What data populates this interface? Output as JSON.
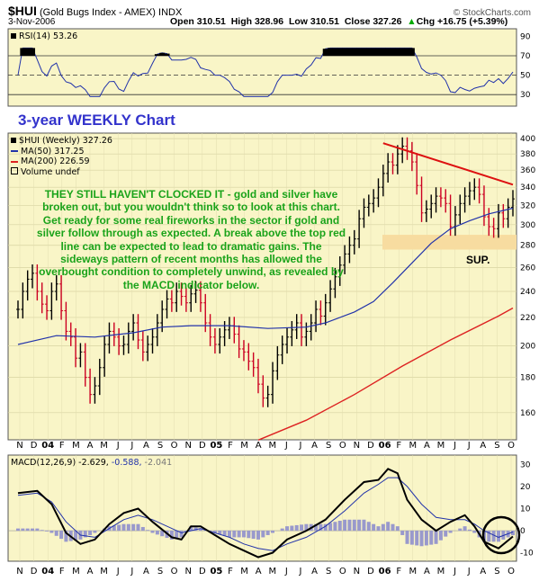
{
  "header": {
    "symbol": "$HUI",
    "name": "(Gold Bugs Index - AMEX) INDX",
    "site": "© StockCharts.com",
    "date": "3-Nov-2006",
    "open": "Open 310.51",
    "high": "High 328.96",
    "low": "Low 310.51",
    "close": "Close 327.26",
    "chg": "Chg +16.75 (+5.39%)",
    "chg_arrow": "▲"
  },
  "rsi": {
    "label": "RSI(14) 53.26"
  },
  "price_legend": {
    "main": "$HUI (Weekly) 327.26",
    "ma50": "MA(50) 317.25",
    "ma200": "MA(200) 226.59",
    "volume": "Volume undef"
  },
  "macd": {
    "label_main": "MACD(12,26,9) -2.629,",
    "label_signal": "-0.588,",
    "label_hist": "-2.041"
  },
  "title": "3-year WEEKLY Chart",
  "annotation": "THEY STILL HAVEN'T CLOCKED IT - gold and silver have broken out, but you wouldn't think so to look at this chart. Get ready for some real fireworks in the sector if gold and silver follow through as expected. A break above the top red line can be expected to lead to dramatic gains. The sideways pattern of recent months has allowed the overbought condition to completely unwind, as revealed by the MACD indicator below.",
  "support_label": "SUP.",
  "colors": {
    "panel_bg": "#f9f5c7",
    "up": "#000000",
    "down": "#cc0022",
    "ma50": "#2233aa",
    "ma200": "#dd2222",
    "support": "#f7dca0",
    "annotation": "#1aa31a",
    "title": "#3333cc",
    "hist": "#9999cc"
  },
  "chart_data": {
    "type": "line",
    "time_axis": {
      "month_labels": [
        "N",
        "D",
        "04",
        "F",
        "M",
        "A",
        "M",
        "J",
        "J",
        "A",
        "S",
        "O",
        "N",
        "D",
        "05",
        "F",
        "M",
        "A",
        "M",
        "J",
        "J",
        "A",
        "S",
        "O",
        "N",
        "D",
        "06",
        "F",
        "M",
        "A",
        "M",
        "J",
        "J",
        "A",
        "S",
        "O"
      ]
    },
    "price": {
      "yticks": [
        160,
        180,
        200,
        220,
        240,
        260,
        280,
        300,
        320,
        340,
        360,
        380,
        400
      ],
      "ylim": [
        147,
        405
      ],
      "weekly_close": [
        226,
        240,
        250,
        255,
        240,
        230,
        225,
        240,
        246,
        225,
        210,
        206,
        192,
        196,
        180,
        170,
        175,
        186,
        201,
        210,
        206,
        200,
        201,
        210,
        216,
        204,
        196,
        201,
        206,
        216,
        226,
        234,
        231,
        240,
        236,
        231,
        238,
        241,
        231,
        216,
        206,
        201,
        206,
        211,
        214,
        208,
        198,
        196,
        190,
        186,
        176,
        168,
        170,
        184,
        194,
        201,
        206,
        211,
        216,
        206,
        210,
        216,
        226,
        221,
        231,
        242,
        252,
        262,
        272,
        280,
        286,
        306,
        318,
        322,
        328,
        340,
        356,
        370,
        366,
        380,
        390,
        384,
        370,
        342,
        312,
        316,
        322,
        330,
        328,
        322,
        298,
        310,
        322,
        330,
        336,
        340,
        332,
        308,
        298,
        296,
        312,
        306,
        318,
        327
      ],
      "ma50": {
        "name": "MA(50) 317.25",
        "values": [
          [
            0,
            201
          ],
          [
            8,
            207
          ],
          [
            16,
            206
          ],
          [
            24,
            209
          ],
          [
            30,
            213
          ],
          [
            36,
            214
          ],
          [
            44,
            214
          ],
          [
            52,
            212
          ],
          [
            60,
            213
          ],
          [
            64,
            216
          ],
          [
            70,
            224
          ],
          [
            74,
            232
          ],
          [
            78,
            247
          ],
          [
            82,
            264
          ],
          [
            86,
            282
          ],
          [
            90,
            296
          ],
          [
            94,
            304
          ],
          [
            98,
            311
          ],
          [
            103,
            317
          ]
        ]
      },
      "ma200": {
        "name": "MA(200) 226.59",
        "values": [
          [
            50,
            146
          ],
          [
            60,
            156
          ],
          [
            70,
            170
          ],
          [
            80,
            187
          ],
          [
            90,
            204
          ],
          [
            100,
            221
          ],
          [
            103,
            227
          ]
        ]
      },
      "resistance_line": [
        [
          76,
          394
        ],
        [
          103,
          343
        ]
      ],
      "support_zone": [
        276,
        290
      ]
    },
    "rsi": {
      "yticks": [
        30,
        50,
        70,
        90
      ],
      "overbought": 70,
      "oversold": 30,
      "last": 53.26
    },
    "macd": {
      "yticks": [
        -10,
        0,
        10,
        20,
        30
      ],
      "macd_line": [
        [
          0,
          17
        ],
        [
          4,
          18
        ],
        [
          7,
          12
        ],
        [
          10,
          -1
        ],
        [
          13,
          -6
        ],
        [
          16,
          -4
        ],
        [
          19,
          3
        ],
        [
          22,
          8
        ],
        [
          25,
          10
        ],
        [
          28,
          4
        ],
        [
          32,
          -3
        ],
        [
          34,
          -4
        ],
        [
          36,
          2
        ],
        [
          38,
          2
        ],
        [
          41,
          -2
        ],
        [
          44,
          -6
        ],
        [
          47,
          -9
        ],
        [
          50,
          -12
        ],
        [
          53,
          -10
        ],
        [
          56,
          -4
        ],
        [
          60,
          0
        ],
        [
          64,
          5
        ],
        [
          68,
          14
        ],
        [
          72,
          22
        ],
        [
          75,
          23
        ],
        [
          77,
          28
        ],
        [
          79,
          26
        ],
        [
          81,
          14
        ],
        [
          84,
          5
        ],
        [
          87,
          0
        ],
        [
          90,
          4
        ],
        [
          93,
          7
        ],
        [
          95,
          2
        ],
        [
          97,
          -5
        ],
        [
          100,
          -8
        ],
        [
          103,
          -2.629
        ]
      ],
      "signal_line": [
        [
          0,
          16
        ],
        [
          4,
          17
        ],
        [
          7,
          13
        ],
        [
          10,
          4
        ],
        [
          13,
          -2
        ],
        [
          16,
          -3
        ],
        [
          19,
          1
        ],
        [
          22,
          5
        ],
        [
          25,
          7
        ],
        [
          28,
          5
        ],
        [
          32,
          1
        ],
        [
          34,
          -1
        ],
        [
          36,
          0
        ],
        [
          38,
          1
        ],
        [
          41,
          -1
        ],
        [
          44,
          -3
        ],
        [
          47,
          -6
        ],
        [
          50,
          -8
        ],
        [
          53,
          -9
        ],
        [
          56,
          -6
        ],
        [
          60,
          -3
        ],
        [
          64,
          2
        ],
        [
          68,
          9
        ],
        [
          72,
          17
        ],
        [
          75,
          21
        ],
        [
          77,
          24
        ],
        [
          79,
          24
        ],
        [
          81,
          20
        ],
        [
          84,
          12
        ],
        [
          87,
          6
        ],
        [
          90,
          5
        ],
        [
          93,
          5
        ],
        [
          95,
          3
        ],
        [
          97,
          0
        ],
        [
          100,
          -3
        ],
        [
          103,
          -0.588
        ]
      ],
      "last_hist": -2.041
    }
  }
}
